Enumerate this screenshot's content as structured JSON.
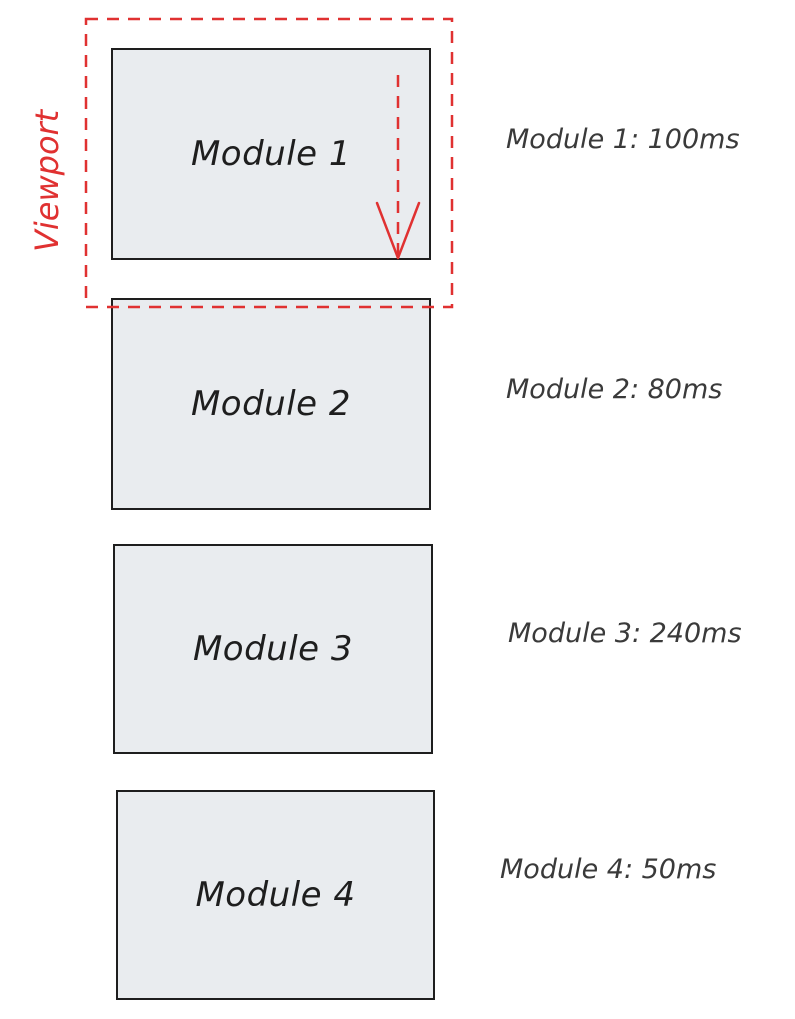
{
  "viewport": {
    "label": "Viewport",
    "color": "#e03131"
  },
  "colors": {
    "box_fill": "#e9ecef",
    "stroke": "#1e1e1e",
    "text": "#1e1e1e",
    "timing_text": "#3a3a3a"
  },
  "modules": [
    {
      "label": "Module 1",
      "timing": "Module 1: 100ms"
    },
    {
      "label": "Module 2",
      "timing": "Module 2: 80ms"
    },
    {
      "label": "Module 3",
      "timing": "Module 3: 240ms"
    },
    {
      "label": "Module 4",
      "timing": "Module 4: 50ms"
    }
  ]
}
